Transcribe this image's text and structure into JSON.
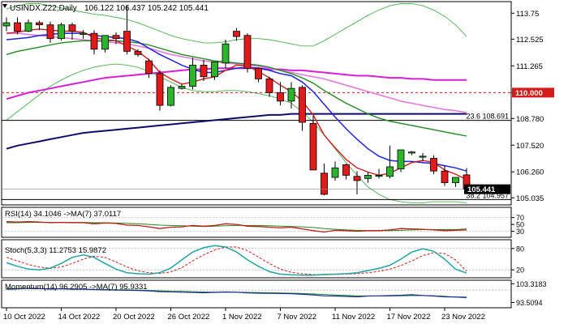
{
  "colors": {
    "bull": "#2ab52a",
    "bear": "#e21a1a",
    "ma_red": "#d21c1c",
    "ma_blue": "#1f24e0",
    "ma_green": "#1f8a1f",
    "ma_pink": "#e27ae2",
    "ma_magenta": "#d520d5",
    "ma_navy": "#0c0c6a",
    "bollinger": "#49b449",
    "level_dash": "#d21c1c",
    "rsi": "#c21a1a",
    "rsi_ma": "#208a20",
    "stoch_k": "#23a4a4",
    "stoch_d": "#d21c1c",
    "momentum": "#1a2a9a",
    "momentum_ma": "#208a20"
  },
  "chart_data": [
    {
      "type": "candlestick",
      "title": "USINDX.Z22,Daily",
      "header_values": "106.122 106.437 105.242 105.441",
      "x_labels": [
        "10 Oct 2022",
        "14 Oct 2022",
        "20 Oct 2022",
        "26 Oct 2022",
        "1 Nov 2022",
        "7 Nov 2022",
        "11 Nov 2022",
        "17 Nov 2022",
        "23 Nov 2022"
      ],
      "y_ticks": [
        113.75,
        112.525,
        111.265,
        110.0,
        108.78,
        107.52,
        106.26,
        105.035
      ],
      "y_tick_labels": [
        "113.75",
        "112.525",
        "111.265",
        "110.000",
        "108.780",
        "107.520",
        "106.260",
        "105.035"
      ],
      "ylim": [
        104.74,
        114.22
      ],
      "candles": [
        [
          113.15,
          113.55,
          112.9,
          113.3
        ],
        [
          113.3,
          113.55,
          112.75,
          112.9
        ],
        [
          112.9,
          113.45,
          112.85,
          113.3
        ],
        [
          113.3,
          113.4,
          112.95,
          113.2
        ],
        [
          113.2,
          113.35,
          112.35,
          112.55
        ],
        [
          112.55,
          113.3,
          112.45,
          113.2
        ],
        [
          113.2,
          113.3,
          112.5,
          112.9
        ],
        [
          112.75,
          112.95,
          112.55,
          112.8
        ],
        [
          112.8,
          112.95,
          111.8,
          112.05
        ],
        [
          112.05,
          112.7,
          111.9,
          112.7
        ],
        [
          112.7,
          112.85,
          112.3,
          112.55
        ],
        [
          112.9,
          114.1,
          111.8,
          111.95
        ],
        [
          111.95,
          112.05,
          111.7,
          111.8
        ],
        [
          111.5,
          111.6,
          110.7,
          110.9
        ],
        [
          110.9,
          111.05,
          109.15,
          109.4
        ],
        [
          109.4,
          110.35,
          109.35,
          110.25
        ],
        [
          110.2,
          110.4,
          110.15,
          110.3
        ],
        [
          110.3,
          111.65,
          110.15,
          111.3
        ],
        [
          111.3,
          111.55,
          110.55,
          110.75
        ],
        [
          110.75,
          111.45,
          110.6,
          111.45
        ],
        [
          111.4,
          112.5,
          111.15,
          112.3
        ],
        [
          112.9,
          113.05,
          112.45,
          112.65
        ],
        [
          112.7,
          112.8,
          110.95,
          111.15
        ],
        [
          111.15,
          111.2,
          110.5,
          110.65
        ],
        [
          110.65,
          110.75,
          109.8,
          110.0
        ],
        [
          110.0,
          110.5,
          109.4,
          109.6
        ],
        [
          109.6,
          110.5,
          109.25,
          110.2
        ],
        [
          110.25,
          110.35,
          108.2,
          108.6
        ],
        [
          108.55,
          108.9,
          106.35,
          106.35
        ],
        [
          106.2,
          106.65,
          105.15,
          105.2
        ],
        [
          106.0,
          106.75,
          105.85,
          106.45
        ],
        [
          106.6,
          106.65,
          105.9,
          106.1
        ],
        [
          106.05,
          106.3,
          105.2,
          105.85
        ],
        [
          105.95,
          106.25,
          105.75,
          106.1
        ],
        [
          106.05,
          106.4,
          105.95,
          106.1
        ],
        [
          106.05,
          107.5,
          105.95,
          106.5
        ],
        [
          106.4,
          107.3,
          106.25,
          107.3
        ],
        [
          107.15,
          107.25,
          107.05,
          107.2
        ],
        [
          107.0,
          107.15,
          106.75,
          107.0
        ],
        [
          106.9,
          107.05,
          106.15,
          106.3
        ],
        [
          106.3,
          106.55,
          105.6,
          105.75
        ],
        [
          105.75,
          106.0,
          105.55,
          106.0
        ],
        [
          106.12,
          106.44,
          105.24,
          105.44
        ]
      ],
      "moving_averages": [
        {
          "name": "ma-red",
          "color": "#d21c1c",
          "values": [
            112.8,
            112.85,
            112.95,
            113.0,
            112.95,
            112.9,
            112.9,
            112.85,
            112.6,
            112.5,
            112.45,
            112.2,
            111.95,
            111.55,
            110.95,
            110.65,
            110.4,
            110.5,
            110.65,
            110.75,
            111.05,
            111.3,
            111.25,
            111.0,
            110.7,
            110.35,
            110.05,
            109.6,
            108.95,
            108.0,
            107.4,
            106.85,
            106.45,
            106.25,
            106.1,
            106.2,
            106.45,
            106.7,
            106.8,
            106.7,
            106.35,
            106.15,
            105.9
          ]
        },
        {
          "name": "ma-blue",
          "color": "#1f24e0",
          "values": [
            112.5,
            112.55,
            112.6,
            112.7,
            112.75,
            112.8,
            112.8,
            112.8,
            112.7,
            112.65,
            112.6,
            112.55,
            112.4,
            112.1,
            111.8,
            111.55,
            111.3,
            111.1,
            110.95,
            110.95,
            111.05,
            111.15,
            111.2,
            111.15,
            111.05,
            110.9,
            110.8,
            110.5,
            110.05,
            109.45,
            108.85,
            108.3,
            107.8,
            107.35,
            107.0,
            106.8,
            106.75,
            106.75,
            106.7,
            106.65,
            106.55,
            106.45,
            106.3
          ]
        },
        {
          "name": "ma-green",
          "color": "#1f8a1f",
          "values": [
            111.8,
            111.95,
            112.05,
            112.15,
            112.25,
            112.35,
            112.4,
            112.45,
            112.45,
            112.45,
            112.45,
            112.4,
            112.35,
            112.25,
            112.1,
            111.95,
            111.8,
            111.7,
            111.6,
            111.5,
            111.45,
            111.4,
            111.35,
            111.3,
            111.2,
            111.05,
            110.9,
            110.7,
            110.45,
            110.1,
            109.8,
            109.5,
            109.25,
            109.0,
            108.8,
            108.65,
            108.55,
            108.45,
            108.35,
            108.25,
            108.15,
            108.05,
            107.95
          ]
        },
        {
          "name": "ma-pink",
          "color": "#e27ae2",
          "values": [
            112.8,
            112.8,
            112.75,
            112.7,
            112.65,
            112.6,
            112.55,
            112.5,
            112.45,
            112.4,
            112.35,
            112.3,
            112.2,
            112.1,
            111.95,
            111.8,
            111.7,
            111.6,
            111.5,
            111.45,
            111.4,
            111.35,
            111.3,
            111.25,
            111.15,
            111.05,
            110.95,
            110.85,
            110.75,
            110.65,
            110.5,
            110.35,
            110.2,
            110.05,
            109.9,
            109.75,
            109.6,
            109.5,
            109.4,
            109.3,
            109.2,
            109.15,
            109.05
          ]
        },
        {
          "name": "ma-magenta",
          "color": "#d520d5",
          "values": [
            109.7,
            109.85,
            110.0,
            110.1,
            110.2,
            110.3,
            110.4,
            110.5,
            110.6,
            110.7,
            110.75,
            110.8,
            110.85,
            110.9,
            110.95,
            111.0,
            111.05,
            111.1,
            111.1,
            111.15,
            111.15,
            111.15,
            111.15,
            111.15,
            111.1,
            111.1,
            111.05,
            111.05,
            111.0,
            110.95,
            110.9,
            110.85,
            110.8,
            110.8,
            110.75,
            110.7,
            110.7,
            110.65,
            110.65,
            110.6,
            110.6,
            110.6,
            110.6
          ]
        },
        {
          "name": "ma-navy",
          "color": "#0c0c6a",
          "values": [
            107.35,
            107.5,
            107.6,
            107.7,
            107.8,
            107.9,
            108.0,
            108.1,
            108.15,
            108.2,
            108.25,
            108.3,
            108.35,
            108.4,
            108.45,
            108.5,
            108.55,
            108.6,
            108.65,
            108.7,
            108.75,
            108.8,
            108.85,
            108.9,
            108.95,
            108.95,
            109.0,
            109.0,
            109.0,
            109.0,
            109.0,
            109.0,
            109.0,
            109.0,
            109.0,
            109.0,
            109.0,
            109.0,
            109.0,
            109.0,
            109.0,
            109.0,
            109.0
          ]
        }
      ],
      "bollinger": {
        "upper": [
          113.95,
          114.1,
          114.2,
          114.2,
          114.1,
          114.0,
          113.9,
          113.8,
          113.7,
          113.65,
          113.55,
          113.45,
          113.3,
          113.1,
          112.9,
          112.7,
          112.55,
          112.45,
          112.35,
          112.35,
          112.4,
          112.5,
          112.55,
          112.55,
          112.5,
          112.4,
          112.3,
          112.2,
          112.2,
          112.45,
          112.75,
          113.05,
          113.35,
          113.65,
          113.9,
          114.1,
          114.2,
          114.2,
          114.1,
          113.9,
          113.6,
          113.2,
          112.65
        ],
        "lower": [
          108.7,
          109.1,
          109.5,
          109.9,
          110.3,
          110.6,
          110.85,
          111.05,
          111.2,
          111.3,
          111.35,
          111.3,
          111.2,
          111.0,
          110.75,
          110.5,
          110.25,
          110.1,
          110.05,
          110.05,
          110.1,
          110.1,
          110.05,
          109.95,
          109.85,
          109.7,
          109.5,
          109.1,
          108.6,
          108.0,
          107.35,
          106.7,
          106.1,
          105.55,
          105.2,
          104.95,
          104.85,
          104.8,
          104.8,
          104.85,
          104.85,
          104.85,
          104.8
        ]
      },
      "fib_levels": [
        {
          "value": 108.691,
          "label": "23.6 108.691"
        },
        {
          "value": 104.957,
          "label": "38.2 104.957"
        }
      ],
      "dashed_level": {
        "value": 110.0,
        "label": "110.000"
      },
      "last_price": {
        "value": 105.441,
        "label": "105.441"
      }
    },
    {
      "type": "line",
      "title": "RSI(14) 34.1046 ->MA(7) 37.0117",
      "y_ticks": [
        70,
        50,
        30
      ],
      "y_tick_labels": [
        "70",
        "50",
        "30"
      ],
      "ylim": [
        15,
        95
      ],
      "series": [
        {
          "name": "RSI(14)",
          "values": [
            58,
            57,
            58,
            57,
            55,
            56,
            55,
            55,
            52,
            54,
            53,
            48,
            47,
            43,
            38,
            42,
            43,
            47,
            45,
            47,
            52,
            50,
            45,
            44,
            42,
            40,
            42,
            37,
            32,
            28,
            33,
            32,
            30,
            32,
            32,
            34,
            38,
            37,
            36,
            34,
            32,
            33,
            34
          ]
        },
        {
          "name": "MA(7)",
          "values": [
            55,
            55,
            56,
            56,
            56,
            56,
            56,
            56,
            55,
            55,
            54,
            53,
            52,
            50,
            48,
            47,
            46,
            45,
            44,
            45,
            46,
            47,
            47,
            47,
            46,
            45,
            44,
            43,
            41,
            38,
            36,
            34,
            33,
            32,
            32,
            32,
            33,
            34,
            35,
            35,
            35,
            35,
            37
          ]
        }
      ]
    },
    {
      "type": "line",
      "title": "Stoch(5,3,3) 11.2753 15.9872",
      "y_ticks": [
        80,
        20
      ],
      "y_tick_labels": [
        "80",
        "20"
      ],
      "ylim": [
        0,
        100
      ],
      "series": [
        {
          "name": "%K",
          "values": [
            40,
            30,
            22,
            20,
            25,
            38,
            55,
            62,
            55,
            38,
            22,
            12,
            9,
            8,
            12,
            25,
            48,
            70,
            82,
            88,
            84,
            70,
            48,
            30,
            15,
            8,
            6,
            5,
            5,
            7,
            8,
            9,
            12,
            18,
            24,
            33,
            50,
            70,
            79,
            72,
            50,
            22,
            11
          ]
        },
        {
          "name": "%D",
          "values": [
            55,
            45,
            35,
            28,
            24,
            28,
            38,
            50,
            58,
            55,
            42,
            28,
            17,
            12,
            10,
            14,
            26,
            45,
            62,
            76,
            84,
            84,
            74,
            56,
            38,
            22,
            13,
            9,
            7,
            6,
            7,
            8,
            9,
            12,
            16,
            22,
            32,
            45,
            60,
            68,
            66,
            48,
            16
          ]
        }
      ]
    },
    {
      "type": "line",
      "title": "Momentum(14) 96.2905 ->MA(7) 95.9331",
      "y_ticks": [
        103.3183,
        93.5094
      ],
      "y_tick_labels": [
        "103.3183",
        "93.5094"
      ],
      "ylim": [
        91.2,
        104.3
      ],
      "series": [
        {
          "name": "Momentum(14)",
          "values": [
            100.4,
            100.6,
            101.0,
            100.8,
            100.5,
            100.7,
            100.4,
            100.5,
            100.2,
            100.1,
            100.0,
            99.9,
            99.8,
            99.6,
            99.2,
            99.1,
            98.9,
            98.8,
            98.6,
            98.8,
            99.0,
            98.9,
            98.5,
            98.4,
            98.3,
            98.2,
            98.1,
            97.8,
            97.5,
            97.0,
            96.9,
            96.7,
            96.5,
            96.9,
            97.0,
            97.1,
            97.3,
            97.6,
            97.2,
            96.9,
            96.5,
            96.4,
            96.29
          ]
        },
        {
          "name": "MA(7)",
          "values": [
            100.8,
            100.8,
            100.8,
            100.7,
            100.7,
            100.7,
            100.6,
            100.5,
            100.4,
            100.3,
            100.2,
            100.1,
            100.0,
            99.8,
            99.6,
            99.4,
            99.3,
            99.1,
            99.0,
            98.9,
            98.9,
            98.9,
            98.8,
            98.7,
            98.6,
            98.5,
            98.4,
            98.2,
            98.0,
            97.7,
            97.4,
            97.2,
            97.0,
            96.9,
            96.9,
            96.9,
            97.0,
            97.1,
            97.1,
            97.0,
            96.8,
            96.3,
            95.93
          ]
        }
      ]
    }
  ]
}
